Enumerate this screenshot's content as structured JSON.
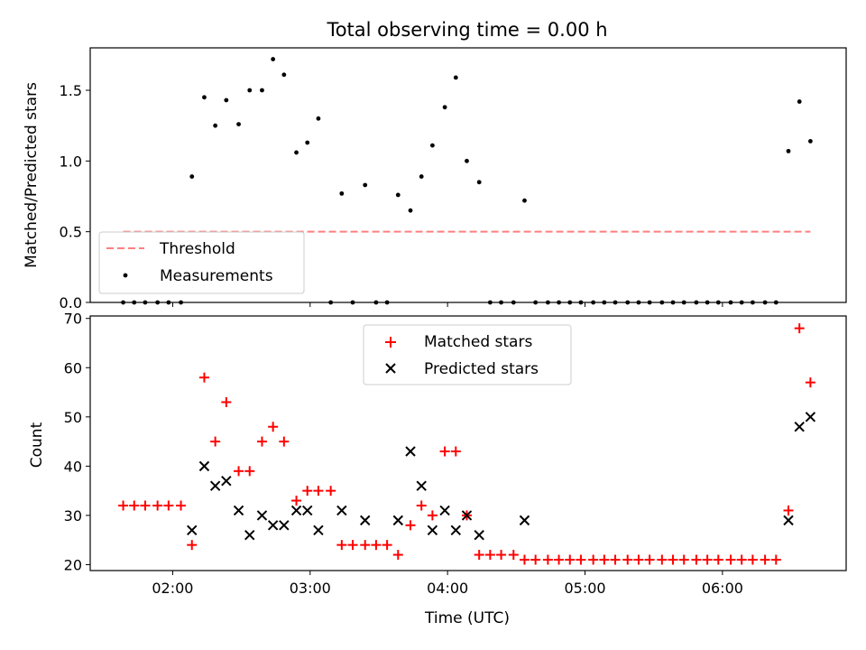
{
  "chart_data": [
    {
      "type": "scatter",
      "title": "Total observing time = 0.00 h",
      "xlabel": "",
      "ylabel": "Matched/Predicted stars",
      "xlim": [
        1.4,
        6.9
      ],
      "ylim": [
        0,
        1.8
      ],
      "yticks": [
        0.0,
        0.5,
        1.0,
        1.5
      ],
      "ytick_labels": [
        "0.0",
        "0.5",
        "1.0",
        "1.5"
      ],
      "xticks": [
        2,
        3,
        4,
        5,
        6
      ],
      "threshold": {
        "value": 0.5,
        "x_start": 1.64,
        "x_end": 6.64,
        "color": "#ff7f7f",
        "label": "Threshold"
      },
      "series": [
        {
          "name": "Measurements",
          "color": "#000000",
          "x": [
            1.64,
            1.72,
            1.8,
            1.89,
            1.97,
            2.06,
            2.14,
            2.23,
            2.31,
            2.39,
            2.48,
            2.56,
            2.65,
            2.73,
            2.81,
            2.9,
            2.98,
            3.06,
            3.15,
            3.23,
            3.31,
            3.4,
            3.48,
            3.56,
            3.64,
            3.73,
            3.81,
            3.89,
            3.98,
            4.06,
            4.14,
            4.23,
            4.31,
            4.39,
            4.48,
            4.56,
            4.64,
            4.73,
            4.81,
            4.89,
            4.97,
            5.06,
            5.14,
            5.22,
            5.31,
            5.39,
            5.47,
            5.56,
            5.64,
            5.72,
            5.81,
            5.89,
            5.97,
            6.06,
            6.14,
            6.22,
            6.31,
            6.39,
            6.48,
            6.56,
            6.64
          ],
          "y": [
            0,
            0,
            0,
            0,
            0,
            0,
            0.89,
            1.45,
            1.25,
            1.43,
            1.26,
            1.5,
            1.5,
            1.72,
            1.61,
            1.06,
            1.13,
            1.3,
            0,
            0.77,
            0,
            0.83,
            0,
            0,
            0.76,
            0.65,
            0.89,
            1.11,
            1.38,
            1.59,
            1.0,
            0.85,
            0,
            0,
            0,
            0.72,
            0,
            0,
            0,
            0,
            0,
            0,
            0,
            0,
            0,
            0,
            0,
            0,
            0,
            0,
            0,
            0,
            0,
            0,
            0,
            0,
            0,
            0,
            1.07,
            1.42,
            1.14
          ]
        }
      ],
      "legend": {
        "placement": "lower-left",
        "entries": [
          "Threshold",
          "Measurements"
        ]
      }
    },
    {
      "type": "scatter",
      "title": "",
      "xlabel": "Time (UTC)",
      "ylabel": "Count",
      "xlim": [
        1.4,
        6.9
      ],
      "ylim": [
        18.8,
        70.5
      ],
      "yticks": [
        20,
        30,
        40,
        50,
        60,
        70
      ],
      "ytick_labels": [
        "20",
        "30",
        "40",
        "50",
        "60",
        "70"
      ],
      "xticks": [
        2,
        3,
        4,
        5,
        6
      ],
      "xtick_labels": [
        "02:00",
        "03:00",
        "04:00",
        "05:00",
        "06:00"
      ],
      "series": [
        {
          "name": "Matched stars",
          "marker": "+",
          "color": "#ff0000",
          "x": [
            1.64,
            1.72,
            1.8,
            1.89,
            1.97,
            2.06,
            2.14,
            2.23,
            2.31,
            2.39,
            2.48,
            2.56,
            2.65,
            2.73,
            2.81,
            2.9,
            2.98,
            3.06,
            3.15,
            3.23,
            3.31,
            3.4,
            3.48,
            3.56,
            3.64,
            3.73,
            3.81,
            3.89,
            3.98,
            4.06,
            4.14,
            4.23,
            4.31,
            4.39,
            4.48,
            4.56,
            4.64,
            4.73,
            4.81,
            4.89,
            4.97,
            5.06,
            5.14,
            5.22,
            5.31,
            5.39,
            5.47,
            5.56,
            5.64,
            5.72,
            5.81,
            5.89,
            5.97,
            6.06,
            6.14,
            6.22,
            6.31,
            6.39,
            6.48,
            6.56,
            6.64
          ],
          "y": [
            32,
            32,
            32,
            32,
            32,
            32,
            24,
            58,
            45,
            53,
            39,
            39,
            45,
            48,
            45,
            33,
            35,
            35,
            35,
            24,
            24,
            24,
            24,
            24,
            22,
            28,
            32,
            30,
            43,
            43,
            30,
            22,
            22,
            22,
            22,
            21,
            21,
            21,
            21,
            21,
            21,
            21,
            21,
            21,
            21,
            21,
            21,
            21,
            21,
            21,
            21,
            21,
            21,
            21,
            21,
            21,
            21,
            21,
            31,
            68,
            57
          ]
        },
        {
          "name": "Predicted stars",
          "marker": "x",
          "color": "#000000",
          "x": [
            2.14,
            2.23,
            2.31,
            2.39,
            2.48,
            2.56,
            2.65,
            2.73,
            2.81,
            2.9,
            2.98,
            3.06,
            3.23,
            3.4,
            3.64,
            3.73,
            3.81,
            3.89,
            3.98,
            4.06,
            4.14,
            4.23,
            4.56,
            6.48,
            6.56,
            6.64
          ],
          "y": [
            27,
            40,
            36,
            37,
            31,
            26,
            30,
            28,
            28,
            31,
            31,
            27,
            31,
            29,
            29,
            43,
            36,
            27,
            31,
            27,
            30,
            26,
            29,
            29,
            48,
            50
          ]
        }
      ],
      "legend": {
        "placement": "upper-center",
        "entries": [
          "Matched stars",
          "Predicted stars"
        ]
      }
    }
  ]
}
